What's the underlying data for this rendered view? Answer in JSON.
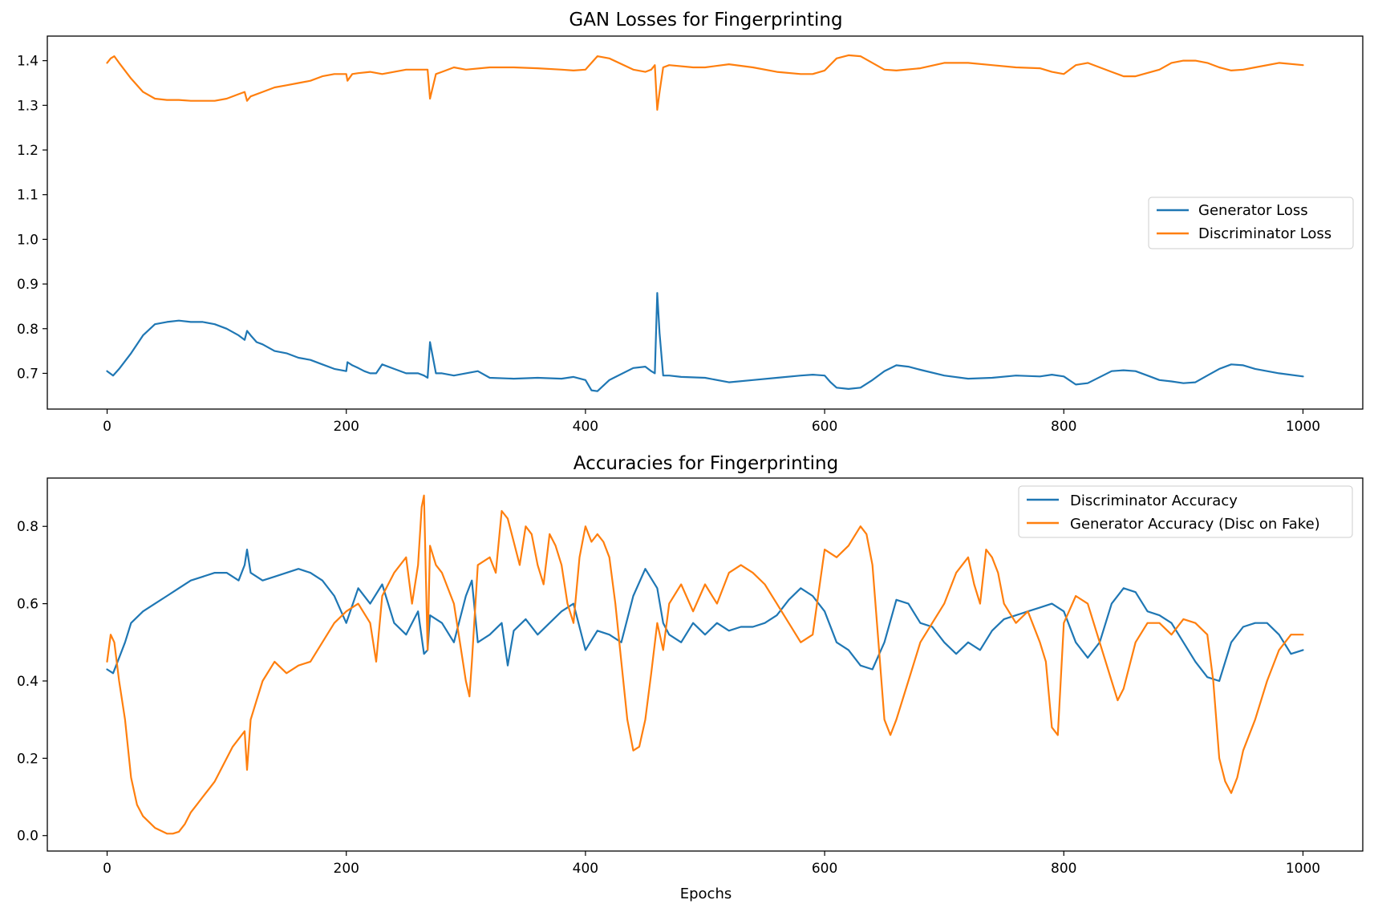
{
  "chart_data": [
    {
      "type": "line",
      "title": "GAN Losses for Fingerprinting",
      "xlabel": "",
      "ylabel": "",
      "xlim": [
        -50,
        1050
      ],
      "ylim": [
        0.62,
        1.455
      ],
      "xticks": [
        0,
        200,
        400,
        600,
        800,
        1000
      ],
      "yticks": [
        0.7,
        0.8,
        0.9,
        1.0,
        1.1,
        1.2,
        1.3,
        1.4
      ],
      "xtick_labels": [
        "0",
        "200",
        "400",
        "600",
        "800",
        "1000"
      ],
      "ytick_labels": [
        "0.7",
        "0.8",
        "0.9",
        "1.0",
        "1.1",
        "1.2",
        "1.3",
        "1.4"
      ],
      "grid": false,
      "legend_position": "center-right",
      "series": [
        {
          "name": "Generator Loss",
          "color": "#1f77b4",
          "x": [
            0,
            5,
            10,
            20,
            30,
            40,
            50,
            60,
            70,
            80,
            90,
            100,
            110,
            115,
            117,
            120,
            125,
            130,
            140,
            150,
            160,
            170,
            180,
            190,
            200,
            201,
            205,
            210,
            215,
            220,
            225,
            230,
            240,
            250,
            260,
            265,
            268,
            270,
            275,
            280,
            290,
            300,
            310,
            320,
            340,
            360,
            380,
            390,
            400,
            405,
            410,
            420,
            440,
            450,
            455,
            458,
            460,
            462,
            465,
            470,
            480,
            500,
            520,
            540,
            560,
            580,
            590,
            600,
            605,
            610,
            620,
            630,
            640,
            650,
            660,
            670,
            680,
            700,
            720,
            740,
            760,
            780,
            790,
            800,
            810,
            820,
            840,
            850,
            860,
            870,
            880,
            890,
            900,
            910,
            920,
            930,
            940,
            950,
            960,
            980,
            1000
          ],
          "y": [
            0.705,
            0.695,
            0.71,
            0.745,
            0.785,
            0.81,
            0.815,
            0.818,
            0.815,
            0.815,
            0.81,
            0.8,
            0.785,
            0.775,
            0.795,
            0.785,
            0.77,
            0.765,
            0.75,
            0.745,
            0.735,
            0.73,
            0.72,
            0.71,
            0.705,
            0.725,
            0.718,
            0.712,
            0.705,
            0.7,
            0.7,
            0.72,
            0.71,
            0.7,
            0.7,
            0.695,
            0.69,
            0.77,
            0.7,
            0.7,
            0.695,
            0.7,
            0.705,
            0.69,
            0.688,
            0.69,
            0.688,
            0.692,
            0.685,
            0.662,
            0.66,
            0.685,
            0.712,
            0.715,
            0.705,
            0.7,
            0.88,
            0.79,
            0.695,
            0.695,
            0.692,
            0.69,
            0.68,
            0.685,
            0.69,
            0.695,
            0.697,
            0.695,
            0.68,
            0.668,
            0.665,
            0.668,
            0.685,
            0.705,
            0.718,
            0.715,
            0.708,
            0.695,
            0.688,
            0.69,
            0.695,
            0.693,
            0.697,
            0.693,
            0.675,
            0.678,
            0.705,
            0.707,
            0.705,
            0.695,
            0.685,
            0.682,
            0.678,
            0.68,
            0.695,
            0.71,
            0.72,
            0.718,
            0.71,
            0.7,
            0.693
          ]
        },
        {
          "name": "Discriminator Loss",
          "color": "#ff7f0e",
          "x": [
            0,
            3,
            6,
            10,
            20,
            30,
            40,
            50,
            60,
            70,
            80,
            90,
            100,
            110,
            115,
            117,
            120,
            130,
            140,
            150,
            160,
            170,
            180,
            190,
            200,
            201,
            205,
            210,
            220,
            230,
            240,
            250,
            260,
            265,
            268,
            270,
            275,
            280,
            290,
            300,
            320,
            340,
            360,
            380,
            390,
            400,
            405,
            410,
            420,
            440,
            450,
            455,
            458,
            460,
            462,
            465,
            470,
            490,
            500,
            520,
            540,
            560,
            580,
            590,
            600,
            610,
            620,
            630,
            640,
            650,
            660,
            680,
            700,
            720,
            740,
            760,
            780,
            790,
            800,
            810,
            820,
            840,
            850,
            860,
            880,
            890,
            900,
            910,
            920,
            930,
            940,
            950,
            960,
            980,
            1000
          ],
          "y": [
            1.395,
            1.405,
            1.41,
            1.395,
            1.36,
            1.33,
            1.315,
            1.312,
            1.312,
            1.31,
            1.31,
            1.31,
            1.315,
            1.325,
            1.33,
            1.31,
            1.32,
            1.33,
            1.34,
            1.345,
            1.35,
            1.355,
            1.365,
            1.37,
            1.37,
            1.355,
            1.37,
            1.372,
            1.375,
            1.37,
            1.375,
            1.38,
            1.38,
            1.38,
            1.38,
            1.315,
            1.37,
            1.375,
            1.385,
            1.38,
            1.385,
            1.385,
            1.383,
            1.38,
            1.378,
            1.38,
            1.395,
            1.41,
            1.405,
            1.38,
            1.375,
            1.38,
            1.39,
            1.29,
            1.33,
            1.385,
            1.39,
            1.385,
            1.385,
            1.392,
            1.385,
            1.375,
            1.37,
            1.37,
            1.378,
            1.405,
            1.412,
            1.41,
            1.395,
            1.38,
            1.378,
            1.383,
            1.395,
            1.395,
            1.39,
            1.385,
            1.383,
            1.375,
            1.37,
            1.39,
            1.395,
            1.375,
            1.365,
            1.365,
            1.38,
            1.395,
            1.4,
            1.4,
            1.395,
            1.385,
            1.378,
            1.38,
            1.385,
            1.395,
            1.39
          ]
        }
      ]
    },
    {
      "type": "line",
      "title": "Accuracies for Fingerprinting",
      "xlabel": "Epochs",
      "ylabel": "",
      "xlim": [
        -50,
        1050
      ],
      "ylim": [
        -0.04,
        0.925
      ],
      "xticks": [
        0,
        200,
        400,
        600,
        800,
        1000
      ],
      "yticks": [
        0.0,
        0.2,
        0.4,
        0.6,
        0.8
      ],
      "xtick_labels": [
        "0",
        "200",
        "400",
        "600",
        "800",
        "1000"
      ],
      "ytick_labels": [
        "0.0",
        "0.2",
        "0.4",
        "0.6",
        "0.8"
      ],
      "grid": false,
      "legend_position": "upper-right",
      "series": [
        {
          "name": "Discriminator Accuracy",
          "color": "#1f77b4",
          "x": [
            0,
            5,
            10,
            15,
            20,
            30,
            40,
            50,
            60,
            70,
            80,
            90,
            100,
            110,
            115,
            117,
            120,
            130,
            140,
            150,
            160,
            170,
            180,
            190,
            200,
            210,
            220,
            230,
            240,
            250,
            260,
            265,
            268,
            270,
            280,
            290,
            300,
            305,
            310,
            320,
            330,
            335,
            340,
            350,
            360,
            370,
            380,
            390,
            400,
            410,
            420,
            430,
            440,
            450,
            460,
            465,
            470,
            480,
            490,
            500,
            510,
            520,
            530,
            540,
            550,
            560,
            570,
            580,
            590,
            600,
            610,
            620,
            630,
            640,
            650,
            660,
            670,
            680,
            690,
            700,
            710,
            720,
            730,
            740,
            750,
            760,
            770,
            780,
            790,
            800,
            810,
            820,
            830,
            840,
            850,
            860,
            870,
            880,
            890,
            900,
            910,
            920,
            930,
            940,
            950,
            960,
            970,
            980,
            990,
            1000
          ],
          "y": [
            0.43,
            0.42,
            0.46,
            0.5,
            0.55,
            0.58,
            0.6,
            0.62,
            0.64,
            0.66,
            0.67,
            0.68,
            0.68,
            0.66,
            0.7,
            0.74,
            0.68,
            0.66,
            0.67,
            0.68,
            0.69,
            0.68,
            0.66,
            0.62,
            0.55,
            0.64,
            0.6,
            0.65,
            0.55,
            0.52,
            0.58,
            0.47,
            0.48,
            0.57,
            0.55,
            0.5,
            0.62,
            0.66,
            0.5,
            0.52,
            0.55,
            0.44,
            0.53,
            0.56,
            0.52,
            0.55,
            0.58,
            0.6,
            0.48,
            0.53,
            0.52,
            0.5,
            0.62,
            0.69,
            0.64,
            0.55,
            0.52,
            0.5,
            0.55,
            0.52,
            0.55,
            0.53,
            0.54,
            0.54,
            0.55,
            0.57,
            0.61,
            0.64,
            0.62,
            0.58,
            0.5,
            0.48,
            0.44,
            0.43,
            0.5,
            0.61,
            0.6,
            0.55,
            0.54,
            0.5,
            0.47,
            0.5,
            0.48,
            0.53,
            0.56,
            0.57,
            0.58,
            0.59,
            0.6,
            0.58,
            0.5,
            0.46,
            0.5,
            0.6,
            0.64,
            0.63,
            0.58,
            0.57,
            0.55,
            0.5,
            0.45,
            0.41,
            0.4,
            0.5,
            0.54,
            0.55,
            0.55,
            0.52,
            0.47,
            0.48
          ]
        },
        {
          "name": "Generator Accuracy (Disc on Fake)",
          "color": "#ff7f0e",
          "x": [
            0,
            3,
            6,
            10,
            15,
            20,
            25,
            30,
            40,
            50,
            55,
            60,
            65,
            70,
            75,
            80,
            85,
            90,
            95,
            100,
            105,
            110,
            115,
            117,
            120,
            125,
            130,
            140,
            150,
            160,
            170,
            180,
            190,
            200,
            210,
            220,
            225,
            230,
            240,
            250,
            255,
            260,
            263,
            265,
            268,
            270,
            275,
            280,
            290,
            295,
            300,
            303,
            305,
            310,
            320,
            325,
            330,
            335,
            340,
            345,
            350,
            355,
            360,
            365,
            370,
            375,
            380,
            385,
            390,
            395,
            400,
            405,
            410,
            415,
            420,
            425,
            430,
            435,
            440,
            445,
            450,
            455,
            460,
            465,
            470,
            480,
            490,
            500,
            510,
            520,
            530,
            540,
            550,
            560,
            570,
            580,
            590,
            600,
            610,
            620,
            630,
            635,
            640,
            645,
            650,
            655,
            660,
            670,
            680,
            690,
            700,
            710,
            720,
            725,
            730,
            735,
            740,
            745,
            750,
            760,
            770,
            780,
            785,
            790,
            795,
            800,
            810,
            820,
            830,
            840,
            845,
            850,
            860,
            870,
            880,
            890,
            900,
            910,
            920,
            925,
            930,
            935,
            940,
            945,
            950,
            960,
            970,
            980,
            990,
            1000
          ],
          "y": [
            0.45,
            0.52,
            0.5,
            0.4,
            0.3,
            0.15,
            0.08,
            0.05,
            0.02,
            0.005,
            0.005,
            0.01,
            0.03,
            0.06,
            0.08,
            0.1,
            0.12,
            0.14,
            0.17,
            0.2,
            0.23,
            0.25,
            0.27,
            0.17,
            0.3,
            0.35,
            0.4,
            0.45,
            0.42,
            0.44,
            0.45,
            0.5,
            0.55,
            0.58,
            0.6,
            0.55,
            0.45,
            0.62,
            0.68,
            0.72,
            0.6,
            0.7,
            0.85,
            0.88,
            0.48,
            0.75,
            0.7,
            0.68,
            0.6,
            0.5,
            0.4,
            0.36,
            0.45,
            0.7,
            0.72,
            0.68,
            0.84,
            0.82,
            0.76,
            0.7,
            0.8,
            0.78,
            0.7,
            0.65,
            0.78,
            0.75,
            0.7,
            0.6,
            0.55,
            0.72,
            0.8,
            0.76,
            0.78,
            0.76,
            0.72,
            0.6,
            0.45,
            0.3,
            0.22,
            0.23,
            0.3,
            0.42,
            0.55,
            0.48,
            0.6,
            0.65,
            0.58,
            0.65,
            0.6,
            0.68,
            0.7,
            0.68,
            0.65,
            0.6,
            0.55,
            0.5,
            0.52,
            0.74,
            0.72,
            0.75,
            0.8,
            0.78,
            0.7,
            0.5,
            0.3,
            0.26,
            0.3,
            0.4,
            0.5,
            0.55,
            0.6,
            0.68,
            0.72,
            0.65,
            0.6,
            0.74,
            0.72,
            0.68,
            0.6,
            0.55,
            0.58,
            0.5,
            0.45,
            0.28,
            0.26,
            0.55,
            0.62,
            0.6,
            0.5,
            0.4,
            0.35,
            0.38,
            0.5,
            0.55,
            0.55,
            0.52,
            0.56,
            0.55,
            0.52,
            0.4,
            0.2,
            0.14,
            0.11,
            0.15,
            0.22,
            0.3,
            0.4,
            0.48,
            0.52,
            0.52
          ]
        }
      ]
    }
  ]
}
